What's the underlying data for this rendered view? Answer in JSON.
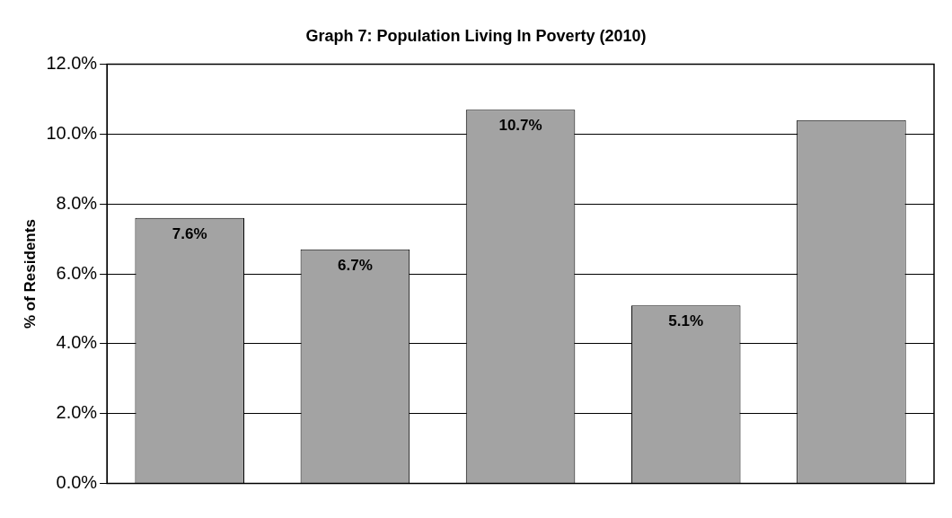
{
  "chart_data": {
    "type": "bar",
    "title": "Graph 7: Population Living In Poverty (2010)",
    "ylabel": "% of Residents",
    "categories": [
      null,
      null,
      null,
      null,
      null
    ],
    "values": [
      7.6,
      6.7,
      10.7,
      5.1,
      10.4
    ],
    "value_labels": [
      "7.6%",
      "6.7%",
      "10.7%",
      "5.1%",
      null
    ],
    "color": "#a3a3a3",
    "ylim": [
      0,
      12
    ],
    "yticks": [
      {
        "value": 0,
        "label": "0.0%"
      },
      {
        "value": 2,
        "label": "2.0%"
      },
      {
        "value": 4,
        "label": "4.0%"
      },
      {
        "value": 6,
        "label": "6.0%"
      },
      {
        "value": 8,
        "label": "8.0%"
      },
      {
        "value": 10,
        "label": "10.0%"
      },
      {
        "value": 12,
        "label": "12.0%"
      }
    ],
    "grid": "y",
    "legend": false
  }
}
